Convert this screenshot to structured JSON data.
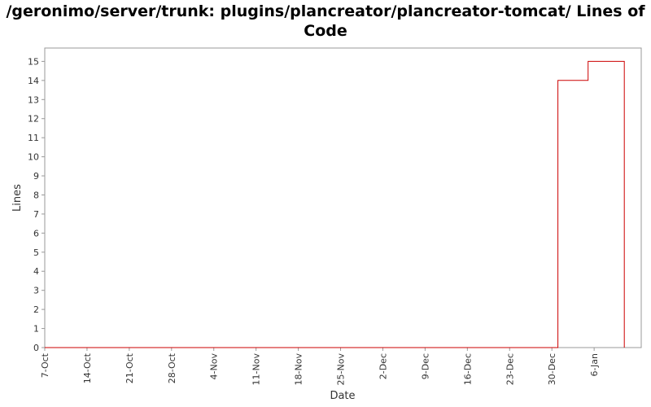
{
  "chart_data": {
    "type": "line",
    "title_lines": [
      "/geronimo/server/trunk: plugins/plancreator/plancreator-tomcat/ Lines of",
      "Code"
    ],
    "xlabel": "Date",
    "ylabel": "Lines",
    "x_ticks": [
      "7-Oct",
      "14-Oct",
      "21-Oct",
      "28-Oct",
      "4-Nov",
      "11-Nov",
      "18-Nov",
      "25-Nov",
      "2-Dec",
      "9-Dec",
      "16-Dec",
      "23-Dec",
      "30-Dec",
      "6-Jan"
    ],
    "y_ticks": [
      0,
      1,
      2,
      3,
      4,
      5,
      6,
      7,
      8,
      9,
      10,
      11,
      12,
      13,
      14,
      15
    ],
    "ylim": [
      0,
      15.7
    ],
    "x_range_days": [
      0,
      98.8
    ],
    "step": "post",
    "series": [
      {
        "color": "#cc0000",
        "x": [
          "7-Oct",
          "31-Dec",
          "31-Dec",
          "5-Jan",
          "11-Jan",
          "11-Jan"
        ],
        "y": [
          0,
          0,
          14,
          15,
          15,
          0
        ]
      }
    ],
    "grid": false,
    "legend": "none"
  }
}
